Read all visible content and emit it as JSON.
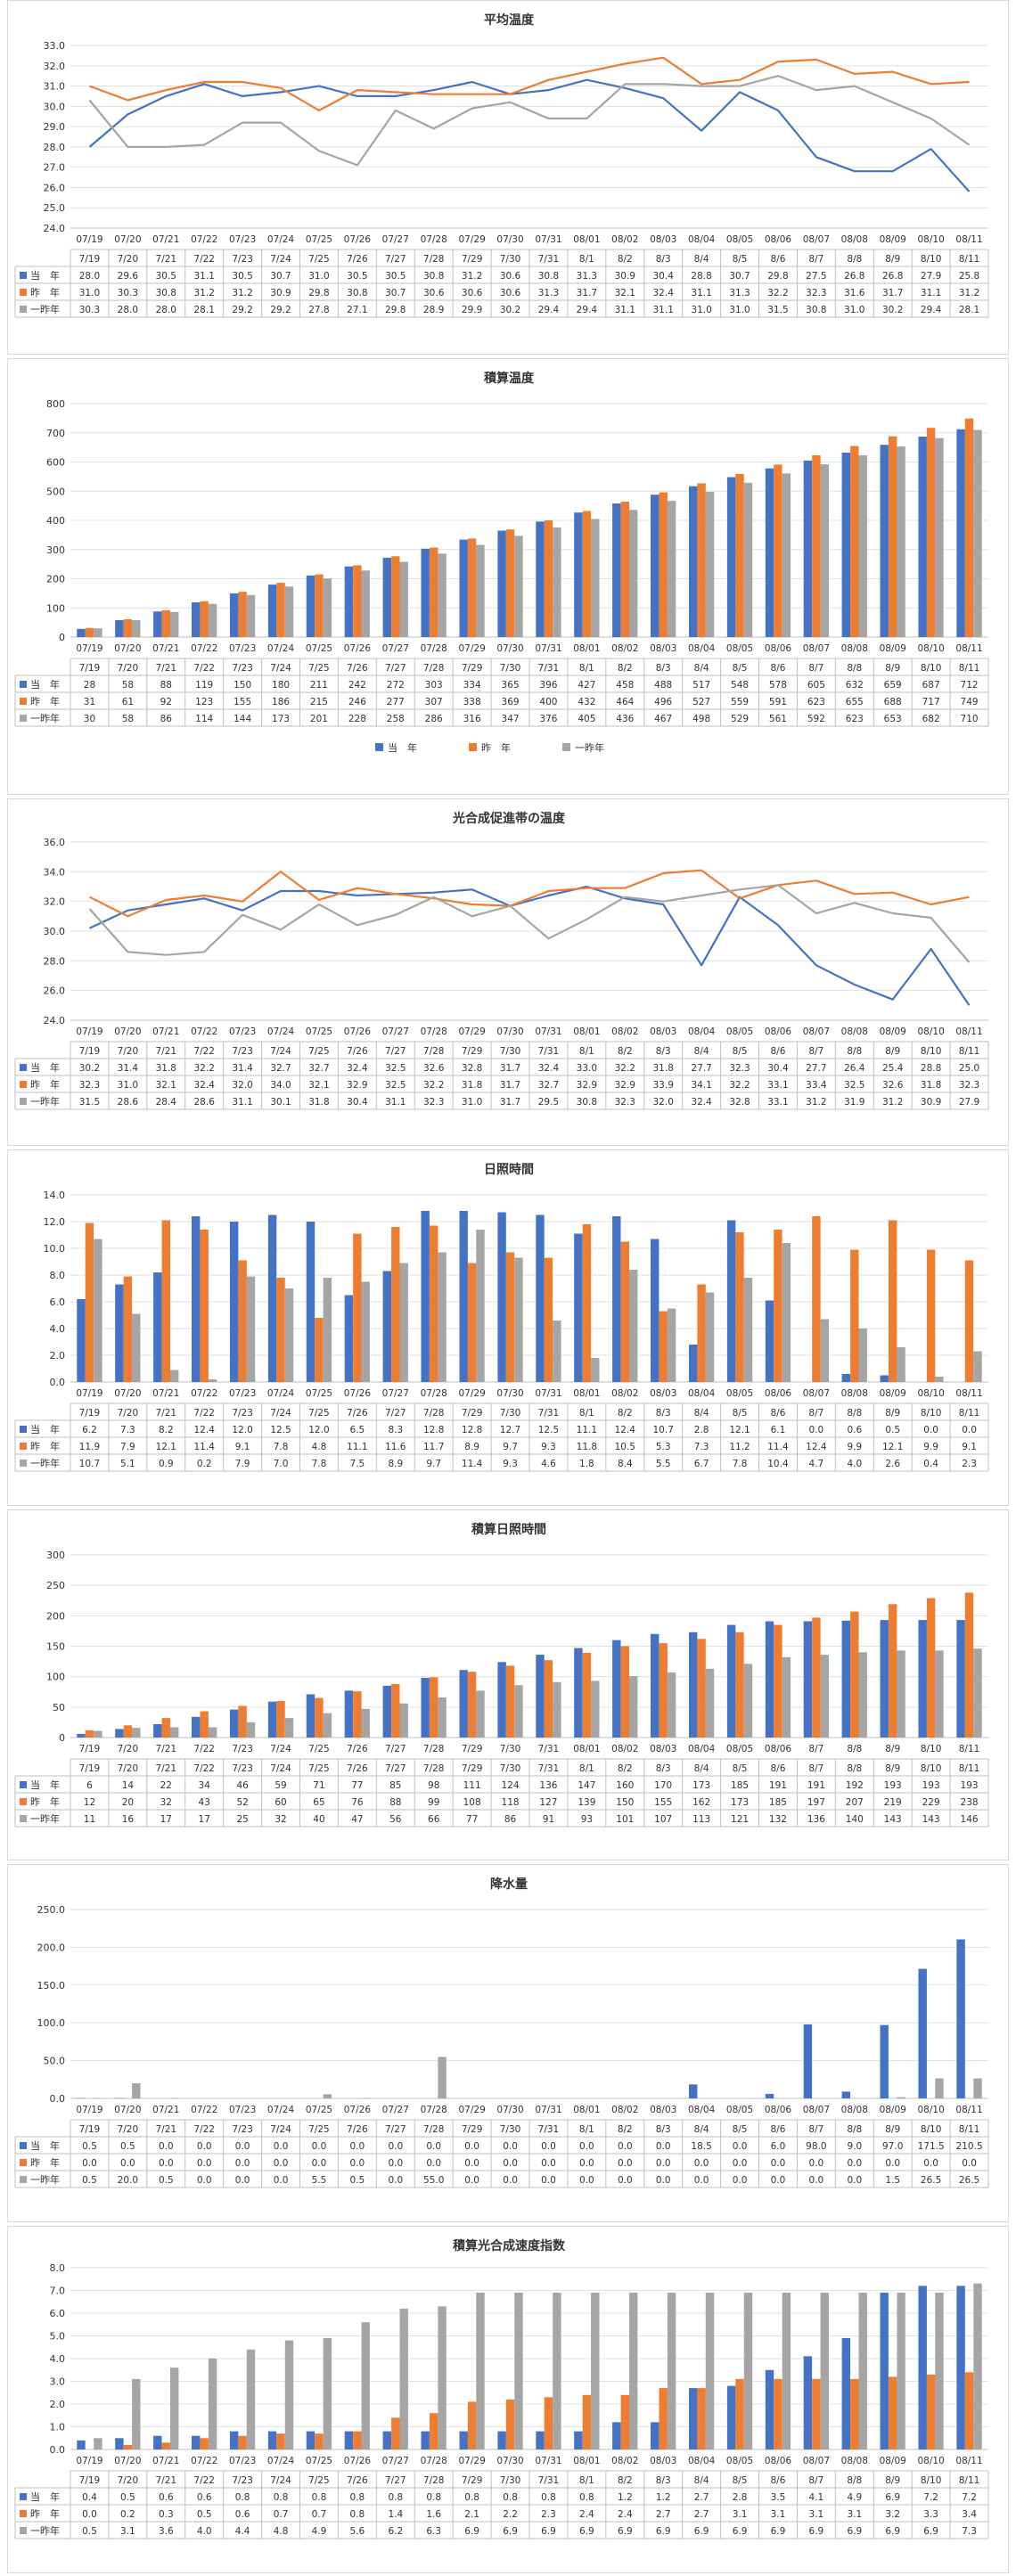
{
  "colors": {
    "current": "#4472C4",
    "last_year": "#ED7D31",
    "two_years_ago": "#A5A5A5"
  },
  "chart_data": [
    {
      "type": "line",
      "title": "平均温度",
      "ylim": [
        24.0,
        33.0
      ],
      "ytick_step": 1.0,
      "ytick_decimals": 1,
      "xtick_labels": [
        "07/19",
        "07/20",
        "07/21",
        "07/22",
        "07/23",
        "07/24",
        "07/25",
        "07/26",
        "07/27",
        "07/28",
        "07/29",
        "07/30",
        "07/31",
        "08/01",
        "08/02",
        "08/03",
        "08/04",
        "08/05",
        "08/06",
        "08/07",
        "08/08",
        "08/09",
        "08/10",
        "08/11"
      ],
      "table_labels": [
        "7/19",
        "7/20",
        "7/21",
        "7/22",
        "7/23",
        "7/24",
        "7/25",
        "7/26",
        "7/27",
        "7/28",
        "7/29",
        "7/30",
        "7/31",
        "8/1",
        "8/2",
        "8/3",
        "8/4",
        "8/5",
        "8/6",
        "8/7",
        "8/8",
        "8/9",
        "8/10",
        "8/11"
      ],
      "grid": true,
      "legend": "table",
      "series": [
        {
          "name": "当　年",
          "values": [
            "28.0",
            "29.6",
            "30.5",
            "31.1",
            "30.5",
            "30.7",
            "31.0",
            "30.5",
            "30.5",
            "30.8",
            "31.2",
            "30.6",
            "30.8",
            "31.3",
            "30.9",
            "30.4",
            "28.8",
            "30.7",
            "29.8",
            "27.5",
            "26.8",
            "26.8",
            "27.9",
            "25.8"
          ]
        },
        {
          "name": "昨　年",
          "values": [
            "31.0",
            "30.3",
            "30.8",
            "31.2",
            "31.2",
            "30.9",
            "29.8",
            "30.8",
            "30.7",
            "30.6",
            "30.6",
            "30.6",
            "31.3",
            "31.7",
            "32.1",
            "32.4",
            "31.1",
            "31.3",
            "32.2",
            "32.3",
            "31.6",
            "31.7",
            "31.1",
            "31.2"
          ]
        },
        {
          "name": "一昨年",
          "values": [
            "30.3",
            "28.0",
            "28.0",
            "28.1",
            "29.2",
            "29.2",
            "27.8",
            "27.1",
            "29.8",
            "28.9",
            "29.9",
            "30.2",
            "29.4",
            "29.4",
            "31.1",
            "31.1",
            "31.0",
            "31.0",
            "31.5",
            "30.8",
            "31.0",
            "30.2",
            "29.4",
            "28.1"
          ]
        }
      ]
    },
    {
      "type": "bar",
      "title": "積算温度",
      "ylim": [
        0,
        800
      ],
      "ytick_step": 100,
      "ytick_decimals": 0,
      "xtick_labels": [
        "07/19",
        "07/20",
        "07/21",
        "07/22",
        "07/23",
        "07/24",
        "07/25",
        "07/26",
        "07/27",
        "07/28",
        "07/29",
        "07/30",
        "07/31",
        "08/01",
        "08/02",
        "08/03",
        "08/04",
        "08/05",
        "08/06",
        "08/07",
        "08/08",
        "08/09",
        "08/10",
        "08/11"
      ],
      "table_labels": [
        "7/19",
        "7/20",
        "7/21",
        "7/22",
        "7/23",
        "7/24",
        "7/25",
        "7/26",
        "7/27",
        "7/28",
        "7/29",
        "7/30",
        "7/31",
        "8/1",
        "8/2",
        "8/3",
        "8/4",
        "8/5",
        "8/6",
        "8/7",
        "8/8",
        "8/9",
        "8/10",
        "8/11"
      ],
      "grid": true,
      "legend": "bottom",
      "series": [
        {
          "name": "当　年",
          "values": [
            "28",
            "58",
            "88",
            "119",
            "150",
            "180",
            "211",
            "242",
            "272",
            "303",
            "334",
            "365",
            "396",
            "427",
            "458",
            "488",
            "517",
            "548",
            "578",
            "605",
            "632",
            "659",
            "687",
            "712"
          ]
        },
        {
          "name": "昨　年",
          "values": [
            "31",
            "61",
            "92",
            "123",
            "155",
            "186",
            "215",
            "246",
            "277",
            "307",
            "338",
            "369",
            "400",
            "432",
            "464",
            "496",
            "527",
            "559",
            "591",
            "623",
            "655",
            "688",
            "717",
            "749"
          ]
        },
        {
          "name": "一昨年",
          "values": [
            "30",
            "58",
            "86",
            "114",
            "144",
            "173",
            "201",
            "228",
            "258",
            "286",
            "316",
            "347",
            "376",
            "405",
            "436",
            "467",
            "498",
            "529",
            "561",
            "592",
            "623",
            "653",
            "682",
            "710"
          ]
        }
      ]
    },
    {
      "type": "line",
      "title": "光合成促進帯の温度",
      "ylim": [
        24.0,
        36.0
      ],
      "ytick_step": 2.0,
      "ytick_decimals": 1,
      "xtick_labels": [
        "07/19",
        "07/20",
        "07/21",
        "07/22",
        "07/23",
        "07/24",
        "07/25",
        "07/26",
        "07/27",
        "07/28",
        "07/29",
        "07/30",
        "07/31",
        "08/01",
        "08/02",
        "08/03",
        "08/04",
        "08/05",
        "08/06",
        "08/07",
        "08/08",
        "08/09",
        "08/10",
        "08/11"
      ],
      "table_labels": [
        "7/19",
        "7/20",
        "7/21",
        "7/22",
        "7/23",
        "7/24",
        "7/25",
        "7/26",
        "7/27",
        "7/28",
        "7/29",
        "7/30",
        "7/31",
        "8/1",
        "8/2",
        "8/3",
        "8/4",
        "8/5",
        "8/6",
        "8/7",
        "8/8",
        "8/9",
        "8/10",
        "8/11"
      ],
      "grid": true,
      "legend": "table",
      "series": [
        {
          "name": "当　年",
          "values": [
            "30.2",
            "31.4",
            "31.8",
            "32.2",
            "31.4",
            "32.7",
            "32.7",
            "32.4",
            "32.5",
            "32.6",
            "32.8",
            "31.7",
            "32.4",
            "33.0",
            "32.2",
            "31.8",
            "27.7",
            "32.3",
            "30.4",
            "27.7",
            "26.4",
            "25.4",
            "28.8",
            "25.0"
          ]
        },
        {
          "name": "昨　年",
          "values": [
            "32.3",
            "31.0",
            "32.1",
            "32.4",
            "32.0",
            "34.0",
            "32.1",
            "32.9",
            "32.5",
            "32.2",
            "31.8",
            "31.7",
            "32.7",
            "32.9",
            "32.9",
            "33.9",
            "34.1",
            "32.2",
            "33.1",
            "33.4",
            "32.5",
            "32.6",
            "31.8",
            "32.3"
          ]
        },
        {
          "name": "一昨年",
          "values": [
            "31.5",
            "28.6",
            "28.4",
            "28.6",
            "31.1",
            "30.1",
            "31.8",
            "30.4",
            "31.1",
            "32.3",
            "31.0",
            "31.7",
            "29.5",
            "30.8",
            "32.3",
            "32.0",
            "32.4",
            "32.8",
            "33.1",
            "31.2",
            "31.9",
            "31.2",
            "30.9",
            "27.9"
          ]
        }
      ]
    },
    {
      "type": "bar",
      "title": "日照時間",
      "ylim": [
        0.0,
        14.0
      ],
      "ytick_step": 2.0,
      "ytick_decimals": 1,
      "xtick_labels": [
        "07/19",
        "07/20",
        "07/21",
        "07/22",
        "07/23",
        "07/24",
        "07/25",
        "07/26",
        "07/27",
        "07/28",
        "07/29",
        "07/30",
        "07/31",
        "08/01",
        "08/02",
        "08/03",
        "08/04",
        "08/05",
        "08/06",
        "08/07",
        "08/08",
        "08/09",
        "08/10",
        "08/11"
      ],
      "table_labels": [
        "7/19",
        "7/20",
        "7/21",
        "7/22",
        "7/23",
        "7/24",
        "7/25",
        "7/26",
        "7/27",
        "7/28",
        "7/29",
        "7/30",
        "7/31",
        "8/1",
        "8/2",
        "8/3",
        "8/4",
        "8/5",
        "8/6",
        "8/7",
        "8/8",
        "8/9",
        "8/10",
        "8/11"
      ],
      "grid": true,
      "legend": "table",
      "series": [
        {
          "name": "当　年",
          "values": [
            "6.2",
            "7.3",
            "8.2",
            "12.4",
            "12.0",
            "12.5",
            "12.0",
            "6.5",
            "8.3",
            "12.8",
            "12.8",
            "12.7",
            "12.5",
            "11.1",
            "12.4",
            "10.7",
            "2.8",
            "12.1",
            "6.1",
            "0.0",
            "0.6",
            "0.5",
            "0.0",
            "0.0"
          ]
        },
        {
          "name": "昨　年",
          "values": [
            "11.9",
            "7.9",
            "12.1",
            "11.4",
            "9.1",
            "7.8",
            "4.8",
            "11.1",
            "11.6",
            "11.7",
            "8.9",
            "9.7",
            "9.3",
            "11.8",
            "10.5",
            "5.3",
            "7.3",
            "11.2",
            "11.4",
            "12.4",
            "9.9",
            "12.1",
            "9.9",
            "9.1"
          ]
        },
        {
          "name": "一昨年",
          "values": [
            "10.7",
            "5.1",
            "0.9",
            "0.2",
            "7.9",
            "7.0",
            "7.8",
            "7.5",
            "8.9",
            "9.7",
            "11.4",
            "9.3",
            "4.6",
            "1.8",
            "8.4",
            "5.5",
            "6.7",
            "7.8",
            "10.4",
            "4.7",
            "4.0",
            "2.6",
            "0.4",
            "2.3"
          ]
        }
      ]
    },
    {
      "type": "bar",
      "title": "積算日照時間",
      "ylim": [
        0,
        300
      ],
      "ytick_step": 50,
      "ytick_decimals": 0,
      "xtick_labels": [
        "7/19",
        "7/20",
        "7/21",
        "7/22",
        "7/23",
        "7/24",
        "7/25",
        "7/26",
        "7/27",
        "7/28",
        "7/29",
        "7/30",
        "7/31",
        "08/01",
        "08/02",
        "08/03",
        "08/04",
        "08/05",
        "08/06",
        "8/7",
        "8/8",
        "8/9",
        "8/10",
        "8/11"
      ],
      "table_labels": [
        "7/19",
        "7/20",
        "7/21",
        "7/22",
        "7/23",
        "7/24",
        "7/25",
        "7/26",
        "7/27",
        "7/28",
        "7/29",
        "7/30",
        "7/31",
        "8/1",
        "8/2",
        "8/3",
        "8/4",
        "8/5",
        "8/6",
        "8/7",
        "8/8",
        "8/9",
        "8/10",
        "8/11"
      ],
      "grid": true,
      "legend": "table",
      "series": [
        {
          "name": "当　年",
          "values": [
            "6",
            "14",
            "22",
            "34",
            "46",
            "59",
            "71",
            "77",
            "85",
            "98",
            "111",
            "124",
            "136",
            "147",
            "160",
            "170",
            "173",
            "185",
            "191",
            "191",
            "192",
            "193",
            "193",
            "193"
          ]
        },
        {
          "name": "昨　年",
          "values": [
            "12",
            "20",
            "32",
            "43",
            "52",
            "60",
            "65",
            "76",
            "88",
            "99",
            "108",
            "118",
            "127",
            "139",
            "150",
            "155",
            "162",
            "173",
            "185",
            "197",
            "207",
            "219",
            "229",
            "238"
          ]
        },
        {
          "name": "一昨年",
          "values": [
            "11",
            "16",
            "17",
            "17",
            "25",
            "32",
            "40",
            "47",
            "56",
            "66",
            "77",
            "86",
            "91",
            "93",
            "101",
            "107",
            "113",
            "121",
            "132",
            "136",
            "140",
            "143",
            "143",
            "146"
          ]
        }
      ]
    },
    {
      "type": "bar",
      "title": "降水量",
      "ylim": [
        0.0,
        250.0
      ],
      "ytick_step": 50.0,
      "ytick_decimals": 1,
      "xtick_labels": [
        "07/19",
        "07/20",
        "07/21",
        "07/22",
        "07/23",
        "07/24",
        "07/25",
        "07/26",
        "07/27",
        "07/28",
        "07/29",
        "07/30",
        "07/31",
        "08/01",
        "08/02",
        "08/03",
        "08/04",
        "08/05",
        "08/06",
        "08/07",
        "08/08",
        "08/09",
        "08/10",
        "08/11"
      ],
      "table_labels": [
        "7/19",
        "7/20",
        "7/21",
        "7/22",
        "7/23",
        "7/24",
        "7/25",
        "7/26",
        "7/27",
        "7/28",
        "7/29",
        "7/30",
        "7/31",
        "8/1",
        "8/2",
        "8/3",
        "8/4",
        "8/5",
        "8/6",
        "8/7",
        "8/8",
        "8/9",
        "8/10",
        "8/11"
      ],
      "grid": true,
      "legend": "table",
      "series": [
        {
          "name": "当　年",
          "values": [
            "0.5",
            "0.5",
            "0.0",
            "0.0",
            "0.0",
            "0.0",
            "0.0",
            "0.0",
            "0.0",
            "0.0",
            "0.0",
            "0.0",
            "0.0",
            "0.0",
            "0.0",
            "0.0",
            "18.5",
            "0.0",
            "6.0",
            "98.0",
            "9.0",
            "97.0",
            "171.5",
            "210.5"
          ]
        },
        {
          "name": "昨　年",
          "values": [
            "0.0",
            "0.0",
            "0.0",
            "0.0",
            "0.0",
            "0.0",
            "0.0",
            "0.0",
            "0.0",
            "0.0",
            "0.0",
            "0.0",
            "0.0",
            "0.0",
            "0.0",
            "0.0",
            "0.0",
            "0.0",
            "0.0",
            "0.0",
            "0.0",
            "0.0",
            "0.0",
            "0.0"
          ]
        },
        {
          "name": "一昨年",
          "values": [
            "0.5",
            "20.0",
            "0.5",
            "0.0",
            "0.0",
            "0.0",
            "5.5",
            "0.5",
            "0.0",
            "55.0",
            "0.0",
            "0.0",
            "0.0",
            "0.0",
            "0.0",
            "0.0",
            "0.0",
            "0.0",
            "0.0",
            "0.0",
            "0.0",
            "1.5",
            "26.5",
            "26.5"
          ]
        }
      ]
    },
    {
      "type": "bar",
      "title": "積算光合成速度指数",
      "ylim": [
        0.0,
        8.0
      ],
      "ytick_step": 1.0,
      "ytick_decimals": 1,
      "xtick_labels": [
        "07/19",
        "07/20",
        "07/21",
        "07/22",
        "07/23",
        "07/24",
        "07/25",
        "07/26",
        "07/27",
        "07/28",
        "07/29",
        "07/30",
        "07/31",
        "08/01",
        "08/02",
        "08/03",
        "08/04",
        "08/05",
        "08/06",
        "08/07",
        "08/08",
        "08/09",
        "08/10",
        "08/11"
      ],
      "table_labels": [
        "7/19",
        "7/20",
        "7/21",
        "7/22",
        "7/23",
        "7/24",
        "7/25",
        "7/26",
        "7/27",
        "7/28",
        "7/29",
        "7/30",
        "7/31",
        "8/1",
        "8/2",
        "8/3",
        "8/4",
        "8/5",
        "8/6",
        "8/7",
        "8/8",
        "8/9",
        "8/10",
        "8/11"
      ],
      "grid": true,
      "legend": "table",
      "series": [
        {
          "name": "当　年",
          "values": [
            "0.4",
            "0.5",
            "0.6",
            "0.6",
            "0.8",
            "0.8",
            "0.8",
            "0.8",
            "0.8",
            "0.8",
            "0.8",
            "0.8",
            "0.8",
            "0.8",
            "1.2",
            "1.2",
            "2.7",
            "2.8",
            "3.5",
            "4.1",
            "4.9",
            "6.9",
            "7.2",
            "7.2"
          ]
        },
        {
          "name": "昨　年",
          "values": [
            "0.0",
            "0.2",
            "0.3",
            "0.5",
            "0.6",
            "0.7",
            "0.7",
            "0.8",
            "1.4",
            "1.6",
            "2.1",
            "2.2",
            "2.3",
            "2.4",
            "2.4",
            "2.7",
            "2.7",
            "3.1",
            "3.1",
            "3.1",
            "3.1",
            "3.2",
            "3.3",
            "3.4"
          ]
        },
        {
          "name": "一昨年",
          "values": [
            "0.5",
            "3.1",
            "3.6",
            "4.0",
            "4.4",
            "4.8",
            "4.9",
            "5.6",
            "6.2",
            "6.3",
            "6.9",
            "6.9",
            "6.9",
            "6.9",
            "6.9",
            "6.9",
            "6.9",
            "6.9",
            "6.9",
            "6.9",
            "6.9",
            "6.9",
            "6.9",
            "7.3"
          ]
        }
      ]
    }
  ]
}
